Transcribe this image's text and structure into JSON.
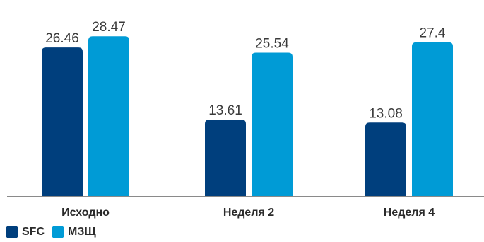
{
  "chart_data": {
    "type": "bar",
    "categories": [
      "Исходно",
      "Неделя 2",
      "Неделя 4"
    ],
    "series": [
      {
        "name": "SFC",
        "values": [
          26.46,
          13.61,
          13.08
        ],
        "color": "#003f7d"
      },
      {
        "name": "МЗЩ",
        "values": [
          28.47,
          25.54,
          27.4
        ],
        "color": "#009bd6"
      }
    ],
    "value_labels": [
      [
        "26.46",
        "13.61",
        "13.08"
      ],
      [
        "28.47",
        "25.54",
        "27.4"
      ]
    ],
    "ylim": [
      0,
      30
    ],
    "grid": false,
    "legend_position": "bottom-left",
    "title": "",
    "xlabel": "",
    "ylabel": ""
  }
}
